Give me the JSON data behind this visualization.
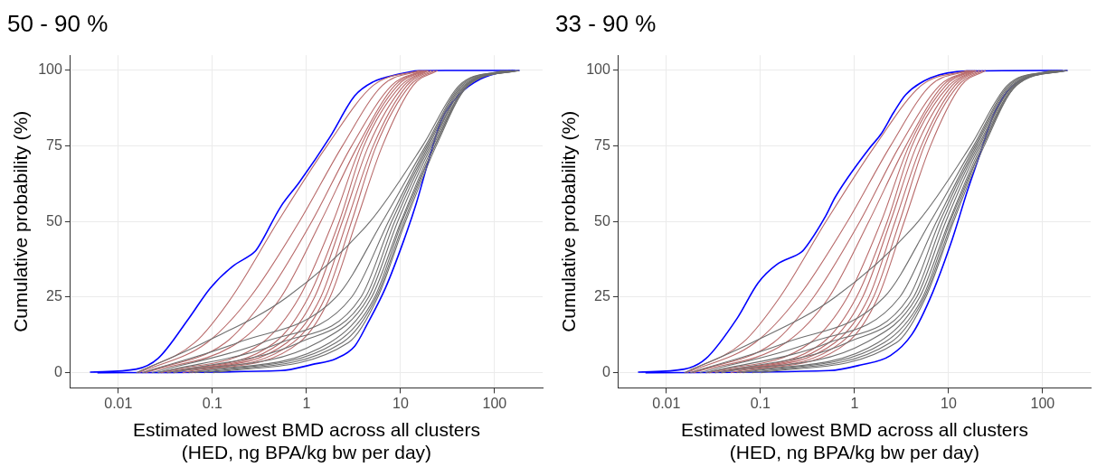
{
  "chart_data": [
    {
      "type": "line",
      "title": "50 - 90 %",
      "xlabel": "Estimated lowest BMD across all clusters\n(HED, ng BPA/kg bw per day)",
      "ylabel": "Cumulative probability (%)",
      "log": "x",
      "grid": true,
      "legend": false,
      "marker": "none",
      "line_style": "solid",
      "xlim": [
        0.0031,
        324
      ],
      "xticks": [
        0.01,
        0.1,
        1,
        10,
        100
      ],
      "ylim": [
        -5,
        105
      ],
      "yticks": [
        0,
        25,
        50,
        75,
        100
      ],
      "series": [
        {
          "color": "#6e6e6e",
          "x": [
            0.0156,
            0.0817,
            0.622,
            4.74,
            17.1,
            42,
            121
          ],
          "values": [
            0,
            10,
            25,
            50,
            75,
            95,
            100
          ]
        },
        {
          "color": "#6e6e6e",
          "x": [
            0.0181,
            0.187,
            2.07,
            6.41,
            18.4,
            43.7,
            130
          ],
          "values": [
            0,
            10,
            25,
            50,
            75,
            95,
            100
          ]
        },
        {
          "color": "#6e6e6e",
          "x": [
            0.0227,
            0.341,
            3.02,
            7.45,
            19.1,
            45.4,
            140
          ],
          "values": [
            0,
            10,
            25,
            50,
            75,
            95,
            100
          ]
        },
        {
          "color": "#6e6e6e",
          "x": [
            0.0264,
            0.536,
            3.79,
            8.04,
            19.8,
            47.1,
            151
          ],
          "values": [
            0,
            10,
            25,
            50,
            75,
            95,
            100
          ]
        },
        {
          "color": "#6e6e6e",
          "x": [
            0.033,
            0.841,
            4.24,
            8.67,
            20.6,
            48.9,
            151
          ],
          "values": [
            0,
            10,
            25,
            50,
            75,
            95,
            100
          ]
        },
        {
          "color": "#6e6e6e",
          "x": [
            0.0385,
            1.32,
            4.57,
            9.34,
            21.4,
            48.9,
            163
          ],
          "values": [
            0,
            10,
            25,
            50,
            75,
            95,
            100
          ]
        },
        {
          "color": "#6e6e6e",
          "x": [
            0.056,
            1.78,
            4.93,
            10.1,
            22.2,
            50.8,
            163
          ],
          "values": [
            0,
            10,
            25,
            50,
            75,
            95,
            100
          ]
        },
        {
          "color": "#6e6e6e",
          "x": [
            0.0652,
            2.07,
            5.31,
            10.4,
            23.1,
            50.8,
            176
          ],
          "values": [
            0,
            10,
            25,
            50,
            75,
            95,
            100
          ]
        },
        {
          "color": "#6e6e6e",
          "x": [
            0.0817,
            2.41,
            5.52,
            10.9,
            23.1,
            52.7,
            176
          ],
          "values": [
            0,
            10,
            25,
            50,
            75,
            95,
            100
          ]
        },
        {
          "color": "#6e6e6e",
          "x": [
            0.102,
            2.8,
            5.73,
            11.3,
            23.9,
            52.7,
            184
          ],
          "values": [
            0,
            10,
            25,
            50,
            75,
            95,
            100
          ]
        },
        {
          "color": "#b86a6a",
          "x": [
            0.0156,
            0.0652,
            0.161,
            0.497,
            1.65,
            5.12,
            15.8
          ],
          "values": [
            0,
            10,
            25,
            50,
            75,
            95,
            100
          ]
        },
        {
          "color": "#b86a6a",
          "x": [
            0.0165,
            0.0879,
            0.252,
            0.841,
            2.41,
            6.41,
            16.4
          ],
          "values": [
            0,
            10,
            25,
            50,
            75,
            95,
            100
          ]
        },
        {
          "color": "#b86a6a",
          "x": [
            0.0181,
            0.138,
            0.367,
            1.14,
            3.02,
            8.04,
            17.1
          ],
          "values": [
            0,
            10,
            25,
            50,
            75,
            95,
            100
          ]
        },
        {
          "color": "#b86a6a",
          "x": [
            0.0195,
            0.187,
            0.536,
            1.42,
            3.51,
            8.67,
            17.7
          ],
          "values": [
            0,
            10,
            25,
            50,
            75,
            95,
            100
          ]
        },
        {
          "color": "#b86a6a",
          "x": [
            0.0264,
            0.341,
            0.841,
            1.92,
            3.79,
            9.34,
            18.4
          ],
          "values": [
            0,
            10,
            25,
            50,
            75,
            95,
            100
          ]
        },
        {
          "color": "#b86a6a",
          "x": [
            0.0285,
            0.46,
            1.05,
            2.23,
            4.08,
            10.1,
            19.1
          ],
          "values": [
            0,
            10,
            25,
            50,
            75,
            95,
            100
          ]
        },
        {
          "color": "#b86a6a",
          "x": [
            0.033,
            0.536,
            1.22,
            2.41,
            4.57,
            10.9,
            19.8
          ],
          "values": [
            0,
            10,
            25,
            50,
            75,
            95,
            100
          ]
        },
        {
          "color": "#b86a6a",
          "x": [
            0.0385,
            0.622,
            1.42,
            2.7,
            5.12,
            11.7,
            21.4
          ],
          "values": [
            0,
            10,
            25,
            50,
            75,
            95,
            100
          ]
        },
        {
          "color": "#b86a6a",
          "x": [
            0.0482,
            0.723,
            1.59,
            3.02,
            5.52,
            12.6,
            23.1
          ],
          "values": [
            0,
            10,
            25,
            50,
            75,
            95,
            100
          ]
        },
        {
          "color": "#b86a6a",
          "x": [
            0.06,
            0.841,
            1.78,
            3.38,
            6.41,
            13.6,
            24.8
          ],
          "values": [
            0,
            10,
            25,
            50,
            75,
            95,
            100
          ]
        },
        {
          "color": "#0000ff",
          "x": [
            0.005,
            0.0156,
            0.0264,
            0.056,
            0.095,
            0.161,
            0.272,
            0.293,
            0.535,
            0.84,
            1.78,
            3.26,
            5.12,
            9.34,
            15.8,
            30,
            165
          ],
          "values": [
            0.2,
            1.2,
            4.7,
            17.9,
            28,
            35,
            39.6,
            40.6,
            55,
            63,
            78,
            91.6,
            96.2,
            98.7,
            99.9,
            100,
            100
          ]
        },
        {
          "color": "#0000ff",
          "x": [
            0.006,
            0.536,
            1.14,
            2.07,
            3.26,
            4.4,
            6.91,
            10.9,
            14.7,
            19.8,
            26.8,
            42,
            71.3,
            121,
            184
          ],
          "values": [
            0,
            0.7,
            2.7,
            4.7,
            8.8,
            15.9,
            28,
            44,
            56,
            70,
            83,
            92,
            97.2,
            99.5,
            100
          ]
        }
      ]
    },
    {
      "type": "line",
      "title": "33 - 90 %",
      "xlabel": "Estimated lowest BMD across all clusters\n(HED, ng BPA/kg bw per day)",
      "ylabel": "Cumulative probability (%)",
      "log": "x",
      "grid": true,
      "legend": false,
      "marker": "none",
      "line_style": "solid",
      "xlim": [
        0.0031,
        324
      ],
      "xticks": [
        0.01,
        0.1,
        1,
        10,
        100
      ],
      "ylim": [
        -5,
        105
      ],
      "yticks": [
        0,
        25,
        50,
        75,
        100
      ],
      "series": [
        {
          "color": "#6e6e6e",
          "x": [
            0.0156,
            0.0817,
            0.622,
            4.74,
            17.1,
            42,
            121
          ],
          "values": [
            0,
            10,
            25,
            50,
            75,
            95,
            100
          ]
        },
        {
          "color": "#6e6e6e",
          "x": [
            0.0181,
            0.187,
            2.07,
            6.41,
            18.4,
            43.7,
            130
          ],
          "values": [
            0,
            10,
            25,
            50,
            75,
            95,
            100
          ]
        },
        {
          "color": "#6e6e6e",
          "x": [
            0.0227,
            0.341,
            3.02,
            7.45,
            19.1,
            45.4,
            140
          ],
          "values": [
            0,
            10,
            25,
            50,
            75,
            95,
            100
          ]
        },
        {
          "color": "#6e6e6e",
          "x": [
            0.0264,
            0.536,
            3.79,
            8.04,
            19.8,
            47.1,
            151
          ],
          "values": [
            0,
            10,
            25,
            50,
            75,
            95,
            100
          ]
        },
        {
          "color": "#6e6e6e",
          "x": [
            0.033,
            0.841,
            4.24,
            8.67,
            20.6,
            48.9,
            151
          ],
          "values": [
            0,
            10,
            25,
            50,
            75,
            95,
            100
          ]
        },
        {
          "color": "#6e6e6e",
          "x": [
            0.0385,
            1.32,
            4.57,
            9.34,
            21.4,
            48.9,
            163
          ],
          "values": [
            0,
            10,
            25,
            50,
            75,
            95,
            100
          ]
        },
        {
          "color": "#6e6e6e",
          "x": [
            0.056,
            1.78,
            4.93,
            10.1,
            22.2,
            50.8,
            163
          ],
          "values": [
            0,
            10,
            25,
            50,
            75,
            95,
            100
          ]
        },
        {
          "color": "#6e6e6e",
          "x": [
            0.0652,
            2.07,
            5.31,
            10.4,
            23.1,
            50.8,
            176
          ],
          "values": [
            0,
            10,
            25,
            50,
            75,
            95,
            100
          ]
        },
        {
          "color": "#6e6e6e",
          "x": [
            0.0817,
            2.41,
            5.52,
            10.9,
            23.1,
            52.7,
            176
          ],
          "values": [
            0,
            10,
            25,
            50,
            75,
            95,
            100
          ]
        },
        {
          "color": "#6e6e6e",
          "x": [
            0.102,
            2.8,
            5.73,
            11.3,
            23.9,
            52.7,
            184
          ],
          "values": [
            0,
            10,
            25,
            50,
            75,
            95,
            100
          ]
        },
        {
          "color": "#b86a6a",
          "x": [
            0.0156,
            0.0652,
            0.161,
            0.497,
            1.65,
            5.12,
            15.8
          ],
          "values": [
            0,
            10,
            25,
            50,
            75,
            95,
            100
          ]
        },
        {
          "color": "#b86a6a",
          "x": [
            0.0165,
            0.0879,
            0.252,
            0.841,
            2.41,
            6.41,
            16.4
          ],
          "values": [
            0,
            10,
            25,
            50,
            75,
            95,
            100
          ]
        },
        {
          "color": "#b86a6a",
          "x": [
            0.0181,
            0.138,
            0.367,
            1.14,
            3.02,
            8.04,
            17.1
          ],
          "values": [
            0,
            10,
            25,
            50,
            75,
            95,
            100
          ]
        },
        {
          "color": "#b86a6a",
          "x": [
            0.0195,
            0.187,
            0.536,
            1.42,
            3.51,
            8.67,
            17.7
          ],
          "values": [
            0,
            10,
            25,
            50,
            75,
            95,
            100
          ]
        },
        {
          "color": "#b86a6a",
          "x": [
            0.0264,
            0.341,
            0.841,
            1.92,
            3.79,
            9.34,
            18.4
          ],
          "values": [
            0,
            10,
            25,
            50,
            75,
            95,
            100
          ]
        },
        {
          "color": "#b86a6a",
          "x": [
            0.0285,
            0.46,
            1.05,
            2.23,
            4.08,
            10.1,
            19.1
          ],
          "values": [
            0,
            10,
            25,
            50,
            75,
            95,
            100
          ]
        },
        {
          "color": "#b86a6a",
          "x": [
            0.033,
            0.536,
            1.22,
            2.41,
            4.57,
            10.9,
            19.8
          ],
          "values": [
            0,
            10,
            25,
            50,
            75,
            95,
            100
          ]
        },
        {
          "color": "#b86a6a",
          "x": [
            0.0385,
            0.622,
            1.42,
            2.7,
            5.12,
            11.7,
            21.4
          ],
          "values": [
            0,
            10,
            25,
            50,
            75,
            95,
            100
          ]
        },
        {
          "color": "#b86a6a",
          "x": [
            0.0482,
            0.723,
            1.59,
            3.02,
            5.52,
            12.6,
            23.1
          ],
          "values": [
            0,
            10,
            25,
            50,
            75,
            95,
            100
          ]
        },
        {
          "color": "#b86a6a",
          "x": [
            0.06,
            0.841,
            1.78,
            3.38,
            6.41,
            13.6,
            24.8
          ],
          "values": [
            0,
            10,
            25,
            50,
            75,
            95,
            100
          ]
        },
        {
          "color": "#0000ff",
          "x": [
            0.005,
            0.0156,
            0.0264,
            0.056,
            0.0948,
            0.149,
            0.272,
            0.293,
            0.497,
            0.622,
            1.42,
            1.92,
            2.6,
            3.51,
            6.41,
            15.8,
            165
          ],
          "values": [
            0.2,
            1.2,
            4.7,
            17.8,
            29.8,
            35.8,
            39.9,
            40.9,
            52,
            58,
            74,
            79,
            86,
            92,
            97.5,
            99.8,
            100
          ]
        },
        {
          "color": "#0000ff",
          "x": [
            0.006,
            0.536,
            1.14,
            2.41,
            4.08,
            6.41,
            10.9,
            15.8,
            21.4,
            28.9,
            42,
            71.3,
            184
          ],
          "values": [
            0,
            0.7,
            2.5,
            5.7,
            12.7,
            24.8,
            44,
            60,
            72,
            84,
            93,
            98,
            100
          ]
        }
      ]
    }
  ]
}
